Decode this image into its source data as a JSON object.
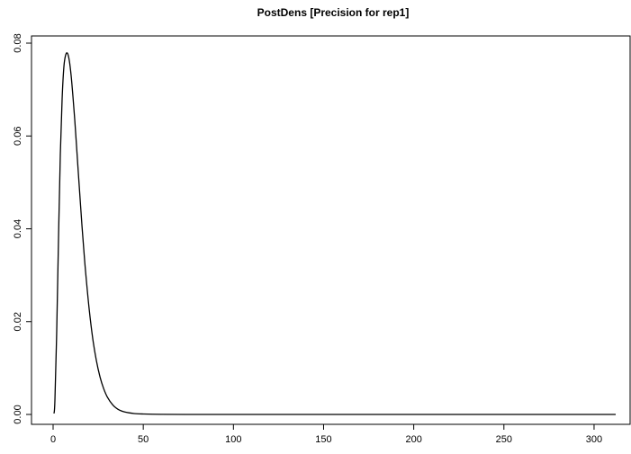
{
  "chart_data": {
    "type": "line",
    "title": "PostDens [Precision for rep1]",
    "xlabel": "",
    "ylabel": "",
    "xlim": [
      0,
      312
    ],
    "ylim": [
      0,
      0.08
    ],
    "x_ticks": [
      0,
      50,
      100,
      150,
      200,
      250,
      300
    ],
    "y_ticks": [
      0.0,
      0.02,
      0.04,
      0.06,
      0.08
    ],
    "x_tick_labels": [
      "0",
      "50",
      "100",
      "150",
      "200",
      "250",
      "300"
    ],
    "y_tick_labels": [
      "0.00",
      "0.02",
      "0.04",
      "0.06",
      "0.08"
    ],
    "grid": false,
    "series": [
      {
        "x": [
          0.5,
          1,
          2,
          3,
          4,
          5,
          6,
          7,
          8,
          9,
          10,
          11,
          12,
          13,
          14,
          15,
          16,
          17,
          18,
          20,
          22,
          24,
          26,
          28,
          30,
          33,
          36,
          40,
          45,
          50,
          60,
          80,
          100,
          150,
          200,
          250,
          312
        ],
        "y": [
          0.0002,
          0.003,
          0.018,
          0.038,
          0.056,
          0.068,
          0.075,
          0.0775,
          0.0778,
          0.0762,
          0.073,
          0.0685,
          0.0635,
          0.0578,
          0.052,
          0.0463,
          0.0407,
          0.0356,
          0.0308,
          0.0227,
          0.0163,
          0.0116,
          0.0081,
          0.0056,
          0.0038,
          0.0021,
          0.0011,
          0.0005,
          0.0002,
          0.0001,
          2e-05,
          0,
          0,
          0,
          0,
          0,
          0
        ]
      }
    ]
  }
}
